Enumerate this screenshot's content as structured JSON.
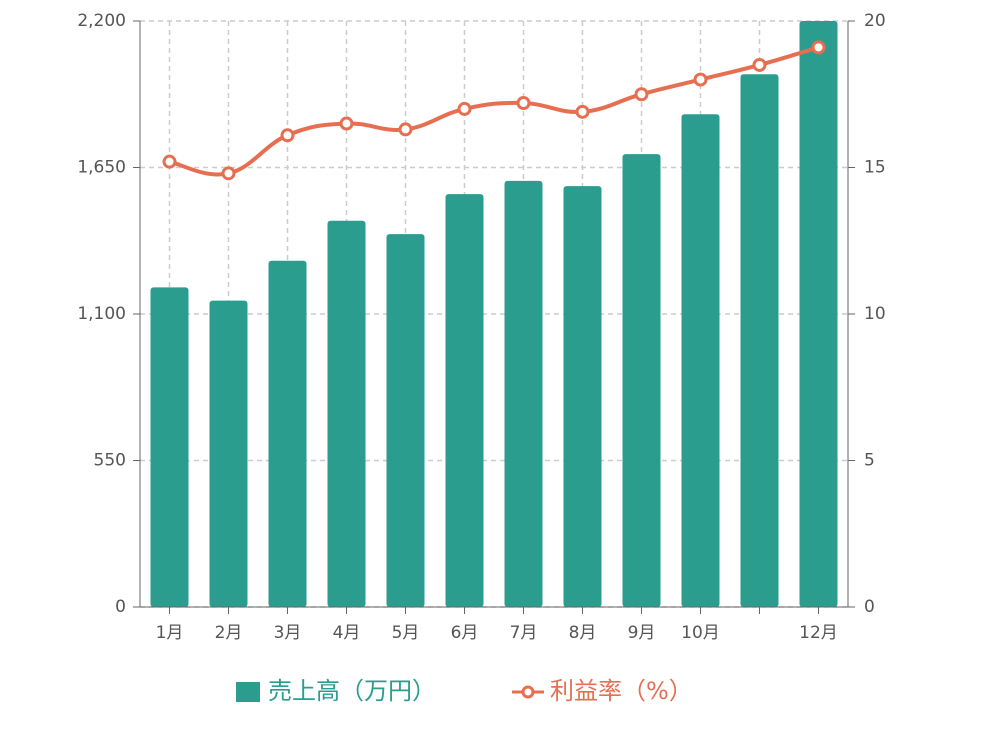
{
  "chart_data": {
    "type": "bar-line",
    "categories": [
      "1月",
      "2月",
      "3月",
      "4月",
      "5月",
      "6月",
      "7月",
      "8月",
      "9月",
      "10月",
      null,
      "12月"
    ],
    "series": [
      {
        "name": "売上高（万円）",
        "type": "bar",
        "color": "#2a9d8f",
        "values": [
          1200,
          1150,
          1300,
          1450,
          1400,
          1550,
          1600,
          1580,
          1700,
          1850,
          2000,
          2200
        ]
      },
      {
        "name": "利益率（%）",
        "type": "line",
        "axis": "y2",
        "color": "#e76f51",
        "values": [
          15.2,
          14.8,
          16.1,
          16.5,
          16.3,
          17.0,
          17.2,
          16.9,
          17.5,
          18.0,
          18.5,
          19.1
        ]
      }
    ],
    "ylim": [
      0,
      2200
    ],
    "yticks": [
      0,
      550,
      {
        "value": 1100,
        "label": "1,100"
      },
      {
        "value": 1650,
        "label": "1,650"
      },
      {
        "value": 2200,
        "label": "2,200"
      }
    ],
    "y2lim": [
      0,
      20
    ],
    "y2ticks": [
      0,
      5,
      10,
      15,
      20
    ],
    "grid": true
  }
}
